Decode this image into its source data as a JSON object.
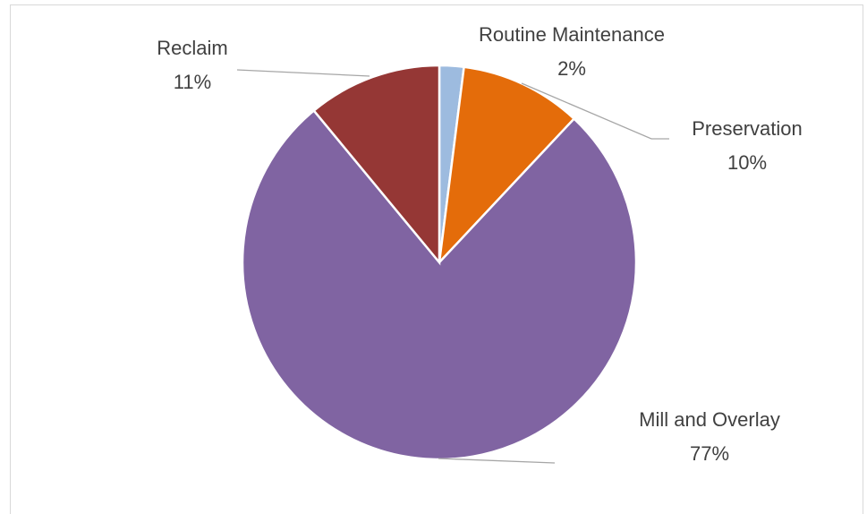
{
  "chart_data": {
    "type": "pie",
    "categories": [
      "Routine Maintenance",
      "Preservation",
      "Mill and Overlay",
      "Reclaim"
    ],
    "values": [
      2,
      10,
      77,
      11
    ],
    "value_labels": [
      "2%",
      "10%",
      "77%",
      "11%"
    ],
    "colors": [
      "#9dbbdf",
      "#e46c0a",
      "#8064a2",
      "#953735"
    ]
  }
}
